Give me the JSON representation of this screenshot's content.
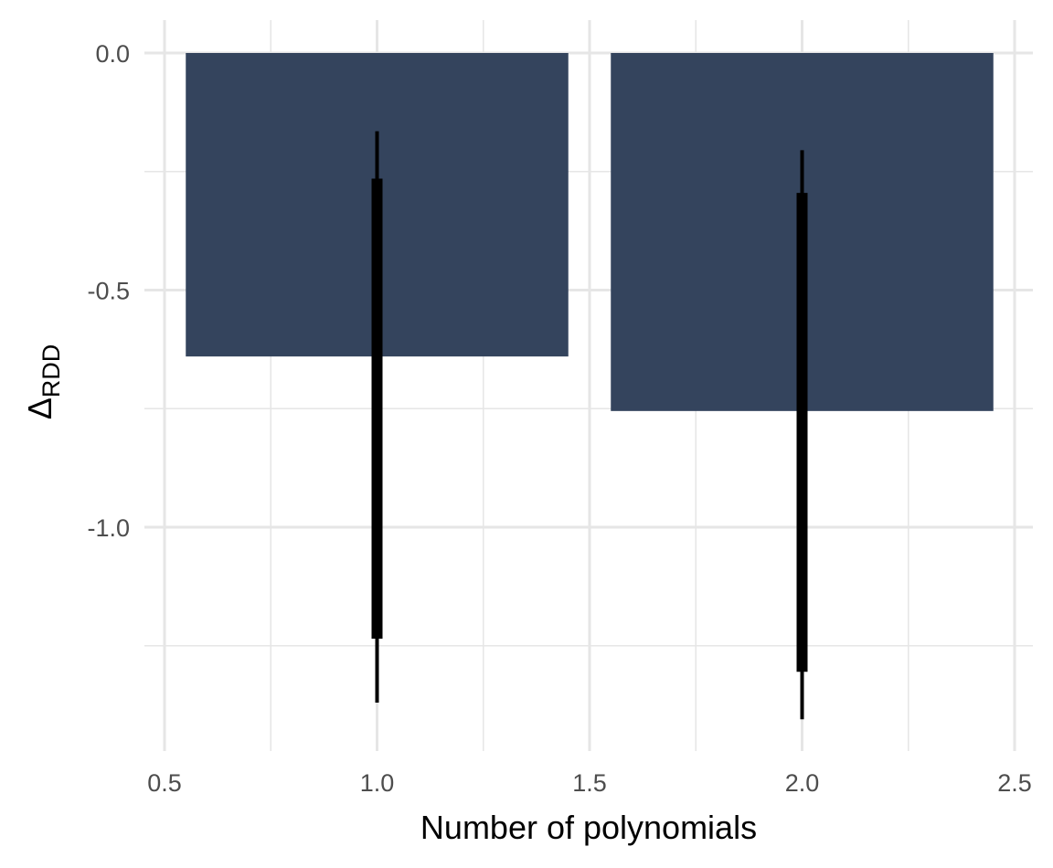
{
  "chart_data": {
    "type": "bar",
    "title": "",
    "xlabel": "Number of polynomials",
    "ylabel_main": "Δ",
    "ylabel_sub": "RDD",
    "x": [
      1.0,
      2.0
    ],
    "values": [
      -0.64,
      -0.755
    ],
    "bar_width": 0.9,
    "interval_inner": [
      [
        -0.265,
        -1.235
      ],
      [
        -0.295,
        -1.305
      ]
    ],
    "interval_outer": [
      [
        -0.165,
        -1.37
      ],
      [
        -0.205,
        -1.405
      ]
    ],
    "xlim": [
      0.5,
      2.5
    ],
    "ylim": [
      -1.46,
      0.07
    ],
    "xticks": [
      0.5,
      1.0,
      1.5,
      2.0,
      2.5
    ],
    "xtick_labels": [
      "0.5",
      "1.0",
      "1.5",
      "2.0",
      "2.5"
    ],
    "yticks": [
      0.0,
      -0.5,
      -1.0
    ],
    "ytick_labels": [
      "0.0",
      "-0.5",
      "-1.0"
    ],
    "grid": true,
    "legend": "none",
    "colors": {
      "bar": "#34445d",
      "interval": "#000000",
      "grid": "#e6e6e6"
    }
  }
}
